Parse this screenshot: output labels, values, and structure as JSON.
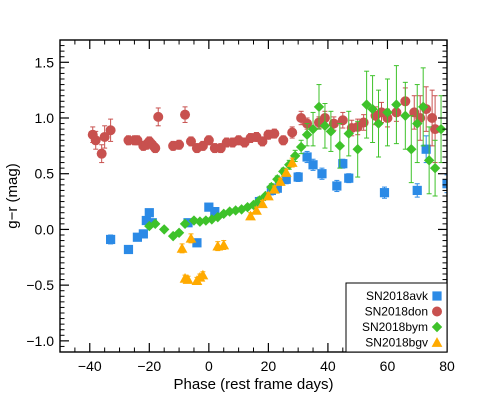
{
  "chart_data": {
    "type": "scatter",
    "xlabel": "Phase (rest frame days)",
    "ylabel": "g−r (mag)",
    "xlim": [
      -50,
      80
    ],
    "ylim": [
      -1.1,
      1.7
    ],
    "xticks": [
      -40,
      -20,
      0,
      20,
      40,
      60,
      80
    ],
    "xtick_labels": [
      "−40",
      "−20",
      "0",
      "20",
      "40",
      "60",
      "80"
    ],
    "yticks": [
      -1.0,
      -0.5,
      0.0,
      0.5,
      1.0,
      1.5
    ],
    "ytick_labels": [
      "−1.0",
      "−0.5",
      "0.0",
      "0.5",
      "1.0",
      "1.5"
    ],
    "grid": false,
    "legend_position": "bottom-right",
    "series": [
      {
        "name": "SN2018avk",
        "color": "#2b8ae6",
        "marker": "square",
        "points": [
          {
            "x": -33,
            "y": -0.09,
            "err": 0.04
          },
          {
            "x": -27,
            "y": -0.18,
            "err": 0.02
          },
          {
            "x": -24,
            "y": -0.07,
            "err": 0.03
          },
          {
            "x": -22,
            "y": -0.04,
            "err": 0.03
          },
          {
            "x": -21,
            "y": 0.08,
            "err": 0.03
          },
          {
            "x": -20,
            "y": 0.15,
            "err": 0.03
          },
          {
            "x": -19,
            "y": 0.06,
            "err": 0.03
          },
          {
            "x": -7,
            "y": 0.06,
            "err": 0.03
          },
          {
            "x": -4,
            "y": -0.12,
            "err": 0.03
          },
          {
            "x": 0,
            "y": 0.2,
            "err": 0.03
          },
          {
            "x": 2,
            "y": 0.16,
            "err": 0.03
          },
          {
            "x": 17,
            "y": 0.25,
            "err": 0.04
          },
          {
            "x": 21,
            "y": 0.35,
            "err": 0.04
          },
          {
            "x": 23,
            "y": 0.37,
            "err": 0.04
          },
          {
            "x": 26,
            "y": 0.45,
            "err": 0.04
          },
          {
            "x": 30,
            "y": 0.47,
            "err": 0.04
          },
          {
            "x": 33,
            "y": 0.65,
            "err": 0.05
          },
          {
            "x": 35,
            "y": 0.58,
            "err": 0.05
          },
          {
            "x": 38,
            "y": 0.5,
            "err": 0.05
          },
          {
            "x": 43,
            "y": 0.39,
            "err": 0.05
          },
          {
            "x": 45,
            "y": 0.59,
            "err": 0.04
          },
          {
            "x": 47,
            "y": 0.46,
            "err": 0.04
          },
          {
            "x": 59,
            "y": 0.33,
            "err": 0.05
          },
          {
            "x": 70,
            "y": 0.35,
            "err": 0.06
          },
          {
            "x": 73,
            "y": 0.72,
            "err": 0.12
          },
          {
            "x": 80,
            "y": 0.41,
            "err": 0.08
          }
        ]
      },
      {
        "name": "SN2018don",
        "color": "#c8514f",
        "marker": "circle",
        "points": [
          {
            "x": -39,
            "y": 0.85,
            "err": 0.07
          },
          {
            "x": -38,
            "y": 0.8,
            "err": 0.08
          },
          {
            "x": -36,
            "y": 0.68,
            "err": 0.08
          },
          {
            "x": -35,
            "y": 0.83,
            "err": 0.1
          },
          {
            "x": -33,
            "y": 0.89,
            "err": 0.1
          },
          {
            "x": -27,
            "y": 0.8,
            "err": 0.04
          },
          {
            "x": -25,
            "y": 0.8,
            "err": 0.04
          },
          {
            "x": -24,
            "y": 0.8,
            "err": 0.04
          },
          {
            "x": -22,
            "y": 0.75,
            "err": 0.04
          },
          {
            "x": -21,
            "y": 0.76,
            "err": 0.04
          },
          {
            "x": -20,
            "y": 0.79,
            "err": 0.04
          },
          {
            "x": -19,
            "y": 0.76,
            "err": 0.04
          },
          {
            "x": -18,
            "y": 0.73,
            "err": 0.04
          },
          {
            "x": -17,
            "y": 1.01,
            "err": 0.08
          },
          {
            "x": -12,
            "y": 0.75,
            "err": 0.04
          },
          {
            "x": -10,
            "y": 0.76,
            "err": 0.04
          },
          {
            "x": -8,
            "y": 1.03,
            "err": 0.07
          },
          {
            "x": -6,
            "y": 0.79,
            "err": 0.04
          },
          {
            "x": -4,
            "y": 0.73,
            "err": 0.04
          },
          {
            "x": -2,
            "y": 0.75,
            "err": 0.04
          },
          {
            "x": 0,
            "y": 0.8,
            "err": 0.04
          },
          {
            "x": 2,
            "y": 0.73,
            "err": 0.04
          },
          {
            "x": 4,
            "y": 0.73,
            "err": 0.04
          },
          {
            "x": 6,
            "y": 0.78,
            "err": 0.04
          },
          {
            "x": 8,
            "y": 0.78,
            "err": 0.04
          },
          {
            "x": 10,
            "y": 0.8,
            "err": 0.04
          },
          {
            "x": 12,
            "y": 0.78,
            "err": 0.04
          },
          {
            "x": 14,
            "y": 0.82,
            "err": 0.04
          },
          {
            "x": 16,
            "y": 0.83,
            "err": 0.04
          },
          {
            "x": 18,
            "y": 0.79,
            "err": 0.04
          },
          {
            "x": 20,
            "y": 0.85,
            "err": 0.04
          },
          {
            "x": 22,
            "y": 0.86,
            "err": 0.04
          },
          {
            "x": 25,
            "y": 0.8,
            "err": 0.04
          },
          {
            "x": 28,
            "y": 0.87,
            "err": 0.05
          },
          {
            "x": 31,
            "y": 1.0,
            "err": 0.06
          },
          {
            "x": 33,
            "y": 0.95,
            "err": 0.05
          },
          {
            "x": 37,
            "y": 0.96,
            "err": 0.05
          },
          {
            "x": 39,
            "y": 1.0,
            "err": 0.06
          },
          {
            "x": 42,
            "y": 0.95,
            "err": 0.06
          },
          {
            "x": 45,
            "y": 0.98,
            "err": 0.07
          },
          {
            "x": 48,
            "y": 0.91,
            "err": 0.07
          },
          {
            "x": 50,
            "y": 0.92,
            "err": 0.07
          },
          {
            "x": 52,
            "y": 0.96,
            "err": 0.07
          },
          {
            "x": 56,
            "y": 1.02,
            "err": 0.08
          },
          {
            "x": 58,
            "y": 1.05,
            "err": 0.09
          },
          {
            "x": 60,
            "y": 1.0,
            "err": 0.08
          },
          {
            "x": 63,
            "y": 1.05,
            "err": 0.08
          },
          {
            "x": 66,
            "y": 1.15,
            "err": 0.12
          },
          {
            "x": 69,
            "y": 1.05,
            "err": 0.15
          },
          {
            "x": 71,
            "y": 1.0,
            "err": 0.2
          },
          {
            "x": 73,
            "y": 1.08,
            "err": 0.2
          },
          {
            "x": 75,
            "y": 1.0,
            "err": 0.25
          },
          {
            "x": 76,
            "y": 0.9,
            "err": 0.3
          }
        ]
      },
      {
        "name": "SN2018bym",
        "color": "#3ec22a",
        "marker": "diamond",
        "points": [
          {
            "x": -20,
            "y": 0.03,
            "err": 0.02
          },
          {
            "x": -18,
            "y": 0.05,
            "err": 0.02
          },
          {
            "x": -15,
            "y": 0.0,
            "err": 0.02
          },
          {
            "x": -12,
            "y": -0.06,
            "err": 0.02
          },
          {
            "x": -10,
            "y": -0.03,
            "err": 0.02
          },
          {
            "x": -8,
            "y": 0.05,
            "err": 0.02
          },
          {
            "x": -5,
            "y": 0.08,
            "err": 0.02
          },
          {
            "x": -3,
            "y": 0.07,
            "err": 0.02
          },
          {
            "x": -1,
            "y": 0.08,
            "err": 0.02
          },
          {
            "x": 1,
            "y": 0.09,
            "err": 0.02
          },
          {
            "x": 3,
            "y": 0.11,
            "err": 0.02
          },
          {
            "x": 5,
            "y": 0.14,
            "err": 0.02
          },
          {
            "x": 7,
            "y": 0.16,
            "err": 0.02
          },
          {
            "x": 9,
            "y": 0.17,
            "err": 0.02
          },
          {
            "x": 11,
            "y": 0.18,
            "err": 0.02
          },
          {
            "x": 13,
            "y": 0.2,
            "err": 0.02
          },
          {
            "x": 15,
            "y": 0.22,
            "err": 0.02
          },
          {
            "x": 17,
            "y": 0.26,
            "err": 0.02
          },
          {
            "x": 19,
            "y": 0.3,
            "err": 0.02
          },
          {
            "x": 21,
            "y": 0.38,
            "err": 0.03
          },
          {
            "x": 23,
            "y": 0.45,
            "err": 0.03
          },
          {
            "x": 25,
            "y": 0.52,
            "err": 0.03
          },
          {
            "x": 27,
            "y": 0.58,
            "err": 0.04
          },
          {
            "x": 29,
            "y": 0.66,
            "err": 0.05
          },
          {
            "x": 31,
            "y": 0.74,
            "err": 0.06
          },
          {
            "x": 33,
            "y": 0.85,
            "err": 0.1
          },
          {
            "x": 35,
            "y": 0.9,
            "err": 0.15
          },
          {
            "x": 37,
            "y": 1.1,
            "err": 0.2
          },
          {
            "x": 39,
            "y": 0.93,
            "err": 0.2
          },
          {
            "x": 41,
            "y": 0.88,
            "err": 0.18
          },
          {
            "x": 44,
            "y": 0.75,
            "err": 0.2
          },
          {
            "x": 47,
            "y": 0.86,
            "err": 0.2
          },
          {
            "x": 50,
            "y": 0.72,
            "err": 0.25
          },
          {
            "x": 53,
            "y": 1.12,
            "err": 0.3
          },
          {
            "x": 55,
            "y": 1.08,
            "err": 0.3
          },
          {
            "x": 57,
            "y": 0.95,
            "err": 0.3
          },
          {
            "x": 60,
            "y": 1.05,
            "err": 0.3
          },
          {
            "x": 63,
            "y": 1.12,
            "err": 0.35
          },
          {
            "x": 66,
            "y": 1.02,
            "err": 0.3
          },
          {
            "x": 68,
            "y": 0.72,
            "err": 0.3
          },
          {
            "x": 70,
            "y": 0.95,
            "err": 0.35
          },
          {
            "x": 72,
            "y": 1.1,
            "err": 0.35
          },
          {
            "x": 74,
            "y": 0.62,
            "err": 0.3
          },
          {
            "x": 76,
            "y": 0.55,
            "err": 0.25
          },
          {
            "x": 78,
            "y": 0.9,
            "err": 0.3
          }
        ]
      },
      {
        "name": "SN2018bgv",
        "color": "#ffaa00",
        "marker": "triangle",
        "points": [
          {
            "x": -9,
            "y": -0.17,
            "err": 0.04
          },
          {
            "x": -8,
            "y": -0.44,
            "err": 0.03
          },
          {
            "x": -7,
            "y": -0.45,
            "err": 0.03
          },
          {
            "x": -6,
            "y": -0.08,
            "err": 0.04
          },
          {
            "x": -4,
            "y": -0.46,
            "err": 0.03
          },
          {
            "x": -3,
            "y": -0.43,
            "err": 0.03
          },
          {
            "x": -2,
            "y": -0.41,
            "err": 0.03
          },
          {
            "x": 3,
            "y": -0.15,
            "err": 0.04
          },
          {
            "x": 5,
            "y": -0.14,
            "err": 0.04
          },
          {
            "x": 14,
            "y": 0.12,
            "err": 0.03
          },
          {
            "x": 16,
            "y": 0.17,
            "err": 0.03
          },
          {
            "x": 18,
            "y": 0.23,
            "err": 0.03
          },
          {
            "x": 20,
            "y": 0.3,
            "err": 0.03
          },
          {
            "x": 22,
            "y": 0.36,
            "err": 0.03
          },
          {
            "x": 24,
            "y": 0.43,
            "err": 0.03
          },
          {
            "x": 26,
            "y": 0.51,
            "err": 0.03
          },
          {
            "x": 28,
            "y": 0.6,
            "err": 0.04
          }
        ]
      }
    ]
  }
}
